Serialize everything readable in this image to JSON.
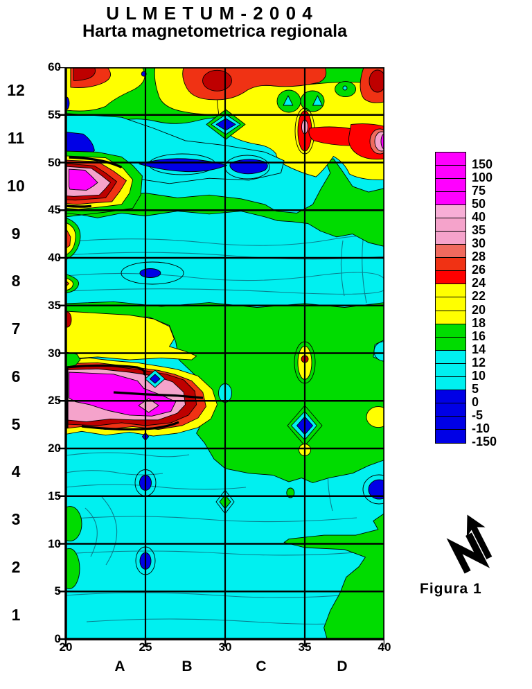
{
  "title": {
    "line1": "U L M E T U M - 2 0 0 4",
    "line2": "Harta magnetometrica regionala"
  },
  "figure_label": "Figura 1",
  "axes": {
    "y_ticks": [
      "60",
      "55",
      "50",
      "45",
      "40",
      "35",
      "30",
      "25",
      "20",
      "15",
      "10",
      "5",
      "0"
    ],
    "x_ticks": [
      "20",
      "25",
      "30",
      "35",
      "40"
    ],
    "row_labels": [
      "12",
      "11",
      "10",
      "9",
      "8",
      "7",
      "6",
      "5",
      "4",
      "3",
      "2",
      "1"
    ],
    "column_labels": [
      "A",
      "B",
      "C",
      "D"
    ]
  },
  "legend": {
    "labels": [
      "150",
      "100",
      "75",
      "50",
      "40",
      "35",
      "30",
      "28",
      "26",
      "24",
      "22",
      "20",
      "18",
      "16",
      "14",
      "12",
      "10",
      "5",
      "0",
      "-5",
      "-10",
      "-150"
    ],
    "colors": [
      "#FF00FF",
      "#FF00FF",
      "#FF00FF",
      "#FF00FF",
      "#F7AED6",
      "#F5A3CB",
      "#F5A3CB",
      "#F06A5E",
      "#F03214",
      "#FF0000",
      "#FFFF00",
      "#FFFF00",
      "#FFFF00",
      "#00DC00",
      "#00DC00",
      "#00F0F0",
      "#00F0F0",
      "#00F0F0",
      "#0000E6",
      "#0000E6",
      "#0000E6",
      "#0000E6"
    ]
  },
  "north_arrow": {
    "icon": "north-arrow-icon",
    "points": "up-left"
  },
  "chart_data": {
    "type": "heatmap",
    "subtype": "filled-contour-map",
    "title": "U L M E T U M - 2 0 0 4",
    "subtitle": "Harta magnetometrica regionala",
    "xlabel": "",
    "ylabel": "",
    "x_range": [
      20,
      40
    ],
    "y_range": [
      0,
      60
    ],
    "x_ticks": [
      20,
      25,
      30,
      35,
      40
    ],
    "y_ticks": [
      0,
      5,
      10,
      15,
      20,
      25,
      30,
      35,
      40,
      45,
      50,
      55,
      60
    ],
    "grid": true,
    "grid_columns": [
      "A",
      "B",
      "C",
      "D"
    ],
    "grid_rows": [
      1,
      2,
      3,
      4,
      5,
      6,
      7,
      8,
      9,
      10,
      11,
      12
    ],
    "contour_levels": [
      -150,
      -10,
      -5,
      0,
      5,
      10,
      12,
      14,
      16,
      18,
      20,
      22,
      24,
      26,
      28,
      30,
      35,
      40,
      50,
      75,
      100,
      150
    ],
    "palette": {
      "magenta": "#FF00FF",
      "pink": "#F5A3CB",
      "salmon": "#F06A5E",
      "red_orange": "#F03214",
      "red": "#FF0000",
      "dark_red": "#BE0000",
      "yellow": "#FFFF00",
      "green": "#00DC00",
      "cyan": "#00F0F0",
      "blue": "#0000E6"
    },
    "legend_position": "right",
    "major_anomalies": [
      {
        "x": 21,
        "y": 48.3,
        "peak": "150+",
        "kind": "magnetic-high"
      },
      {
        "x": 23.5,
        "y": 25.3,
        "peak": "150+",
        "kind": "magnetic-high",
        "shape": "elongated-two-lobes"
      },
      {
        "x": 29.5,
        "y": 58.5,
        "peak": "26-28",
        "kind": "magnetic-high-band-top"
      },
      {
        "x": 35,
        "y": 54,
        "peak": "30-40",
        "kind": "magnetic-high"
      },
      {
        "x": 40,
        "y": 52.3,
        "peak": "75-150",
        "kind": "magnetic-high-right-edge"
      },
      {
        "x": 27.5,
        "y": 50,
        "peak": "below 0",
        "kind": "magnetic-low"
      },
      {
        "x": 21,
        "y": 52,
        "peak": "below 0",
        "kind": "magnetic-low"
      },
      {
        "x": 30,
        "y": 54,
        "peak": "below 0",
        "kind": "magnetic-low"
      },
      {
        "x": 35,
        "y": 22.4,
        "peak": "below 0",
        "kind": "magnetic-low"
      },
      {
        "x": 25,
        "y": 16.3,
        "peak": "below 0",
        "kind": "magnetic-low"
      },
      {
        "x": 25,
        "y": 8.2,
        "peak": "below 0",
        "kind": "magnetic-low"
      }
    ],
    "background_level": "10-14 (cyan), greens 14-18, yellows 18-24 in bands"
  }
}
